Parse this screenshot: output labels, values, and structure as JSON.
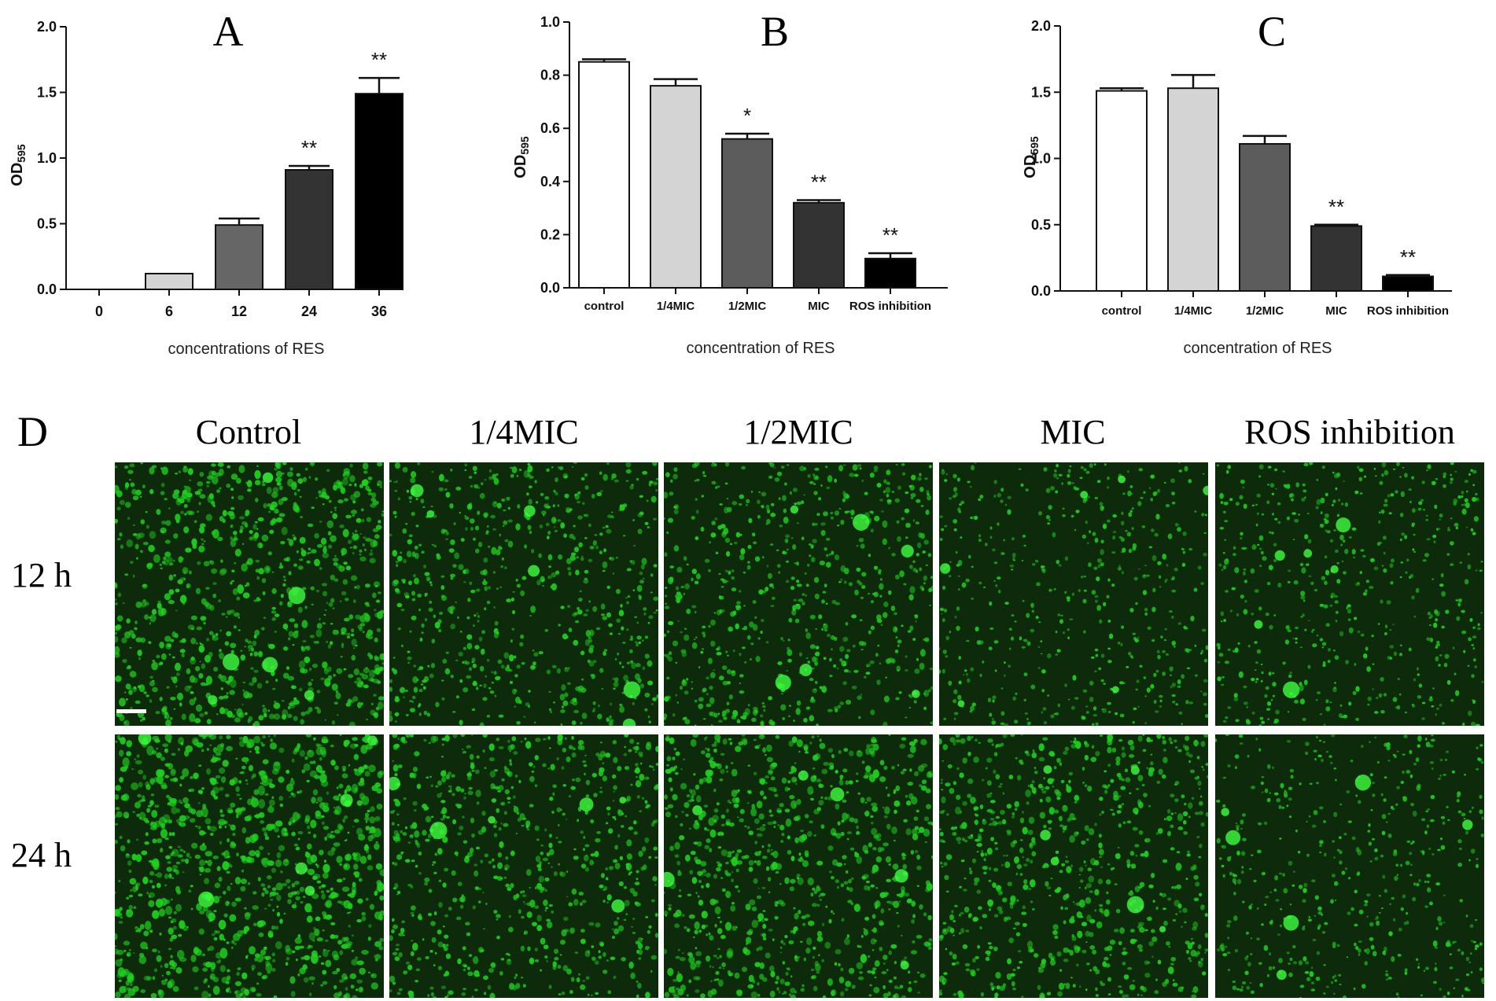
{
  "chart_data": [
    {
      "type": "bar",
      "panel": "A",
      "categories": [
        "0",
        "6",
        "12",
        "24",
        "36"
      ],
      "values": [
        0.0,
        0.12,
        0.49,
        0.91,
        1.49
      ],
      "errors": [
        0.0,
        0.0,
        0.05,
        0.03,
        0.12
      ],
      "significance": [
        "",
        "",
        "",
        "**",
        "**"
      ],
      "bar_colors": [
        "#ffffff",
        "#d4d4d4",
        "#666666",
        "#333333",
        "#000000"
      ],
      "xlabel": "concentrations of RES",
      "ylabel": "OD595",
      "ylim": [
        0,
        2.0
      ],
      "yticks": [
        "0.0",
        "0.5",
        "1.0",
        "1.5",
        "2.0"
      ]
    },
    {
      "type": "bar",
      "panel": "B",
      "categories": [
        "control",
        "1/4MIC",
        "1/2MIC",
        "MIC",
        "ROS inhibition"
      ],
      "values": [
        0.85,
        0.76,
        0.56,
        0.32,
        0.11
      ],
      "errors": [
        0.01,
        0.025,
        0.02,
        0.01,
        0.02
      ],
      "significance": [
        "",
        "",
        "*",
        "**",
        "**"
      ],
      "bar_colors": [
        "#ffffff",
        "#d4d4d4",
        "#5c5c5c",
        "#333333",
        "#000000"
      ],
      "xlabel": "concentration of RES",
      "ylabel": "OD595",
      "ylim": [
        0,
        1.0
      ],
      "yticks": [
        "0.0",
        "0.2",
        "0.4",
        "0.6",
        "0.8",
        "1.0"
      ]
    },
    {
      "type": "bar",
      "panel": "C",
      "categories": [
        "control",
        "1/4MIC",
        "1/2MIC",
        "MIC",
        "ROS inhibition"
      ],
      "values": [
        1.51,
        1.53,
        1.11,
        0.49,
        0.11
      ],
      "errors": [
        0.02,
        0.1,
        0.06,
        0.01,
        0.01
      ],
      "significance": [
        "",
        "",
        "",
        "**",
        "**"
      ],
      "bar_colors": [
        "#ffffff",
        "#d4d4d4",
        "#5c5c5c",
        "#333333",
        "#000000"
      ],
      "xlabel": "concentration of RES",
      "ylabel": "OD595",
      "ylim": [
        0,
        2.0
      ],
      "yticks": [
        "0.0",
        "0.5",
        "1.0",
        "1.5",
        "2.0"
      ]
    }
  ],
  "micrographs": {
    "letter": "D",
    "columns": [
      "Control",
      "1/4MIC",
      "1/2MIC",
      "MIC",
      "ROS inhibition"
    ],
    "rows": [
      "12 h",
      "24 h"
    ],
    "fluorescence_color": "#1fd11f",
    "background_color": "#0d2a0a"
  }
}
